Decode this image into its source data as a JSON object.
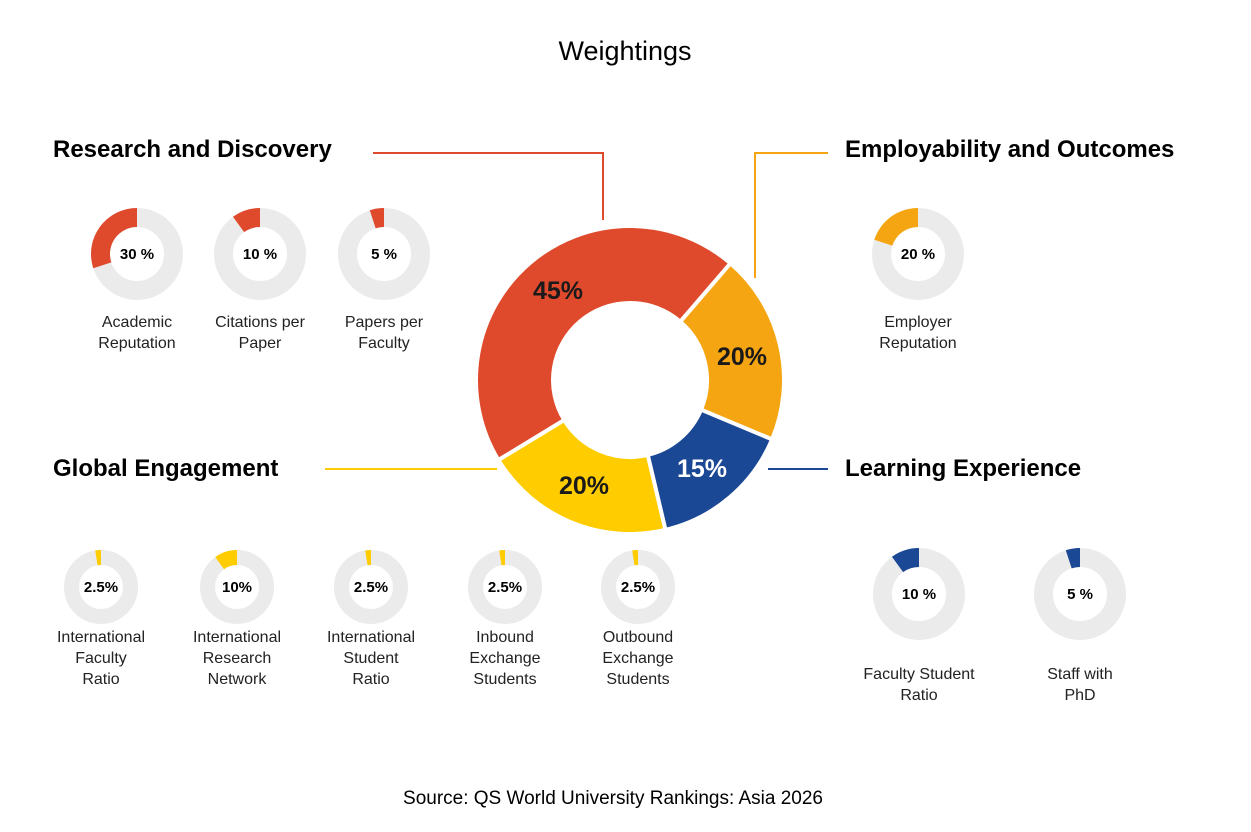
{
  "chart_data": {
    "type": "pie",
    "title": "Weightings",
    "source": "Source: QS World University Rankings: Asia 2026",
    "colors": {
      "research": "#DF4A2D",
      "employability": "#F5A511",
      "global": "#FFCC00",
      "learning": "#1B4894",
      "track": "#EBEBEB"
    },
    "main": [
      {
        "key": "employability",
        "name": "Employability and Outcomes",
        "value": 20,
        "label": "20%"
      },
      {
        "key": "learning",
        "name": "Learning Experience",
        "value": 15,
        "label": "15%"
      },
      {
        "key": "global",
        "name": "Global Engagement",
        "value": 20,
        "label": "20%"
      },
      {
        "key": "research",
        "name": "Research and Discovery",
        "value": 45,
        "label": "45%"
      }
    ],
    "sub": [
      {
        "group": "research",
        "value": 30,
        "label": "30 %",
        "name": [
          "Academic",
          "Reputation"
        ]
      },
      {
        "group": "research",
        "value": 10,
        "label": "10 %",
        "name": [
          "Citations per",
          "Paper"
        ]
      },
      {
        "group": "research",
        "value": 5,
        "label": "5 %",
        "name": [
          "Papers per",
          "Faculty"
        ]
      },
      {
        "group": "employability",
        "value": 20,
        "label": "20 %",
        "name": [
          "Employer",
          "Reputation"
        ]
      },
      {
        "group": "global",
        "value": 2.5,
        "label": "2.5%",
        "name": [
          "International",
          "Faculty",
          "Ratio"
        ]
      },
      {
        "group": "global",
        "value": 10,
        "label": "10%",
        "name": [
          "International",
          "Research",
          "Network"
        ]
      },
      {
        "group": "global",
        "value": 2.5,
        "label": "2.5%",
        "name": [
          "International",
          "Student",
          "Ratio"
        ]
      },
      {
        "group": "global",
        "value": 2.5,
        "label": "2.5%",
        "name": [
          "Inbound",
          "Exchange",
          "Students"
        ]
      },
      {
        "group": "global",
        "value": 2.5,
        "label": "2.5%",
        "name": [
          "Outbound",
          "Exchange",
          "Students"
        ]
      },
      {
        "group": "learning",
        "value": 10,
        "label": "10 %",
        "name": [
          "Faculty Student",
          "Ratio"
        ]
      },
      {
        "group": "learning",
        "value": 5,
        "label": "5 %",
        "name": [
          "Staff with",
          "PhD"
        ]
      }
    ]
  }
}
